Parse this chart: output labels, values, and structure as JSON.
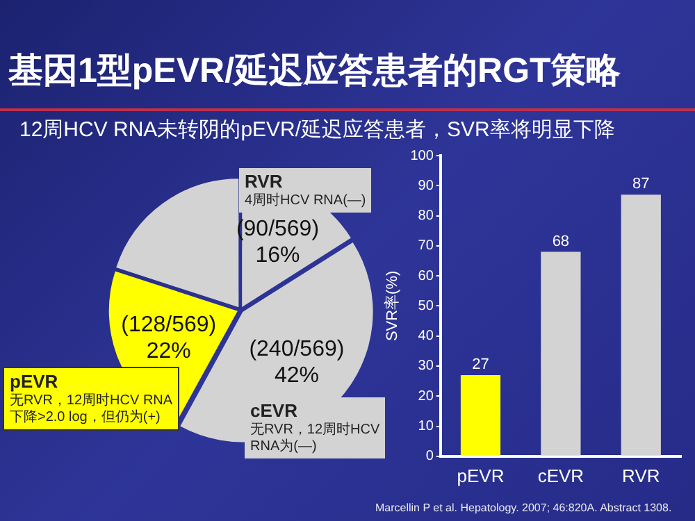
{
  "chart_data": [
    {
      "type": "pie",
      "title": "基因1型pEVR/延迟应答患者的RGT策略",
      "subtitle": "12周HCV RNA未转阴的pEVR/延迟应答患者，SVR率将明显下降",
      "categories": [
        "RVR",
        "cEVR",
        "pEVR",
        null
      ],
      "values": [
        16,
        42,
        22,
        20
      ],
      "colors": [
        "#d3d3d3",
        "#d3d3d3",
        "#ffff00",
        "#d3d3d3"
      ],
      "value_labels": [
        "(90/569)\n16%",
        "(240/569)\n42%",
        "(128/569)\n22%",
        null
      ],
      "annotations": [
        "4周时HCV RNA(—)",
        "无RVR，12周时HCV\nRNA为(—)",
        "无RVR，12周时HCV RNA\n下降>2.0 log，但仍为(+)"
      ],
      "legend": false
    },
    {
      "type": "bar",
      "categories": [
        "pEVR",
        "cEVR",
        "RVR"
      ],
      "values": [
        27,
        68,
        87
      ],
      "colors": [
        "#ffff00",
        "#d3d3d3",
        "#d3d3d3"
      ],
      "ylabel": "SVR率(%)",
      "ylim": [
        0,
        100
      ],
      "yticks": [
        0,
        10,
        20,
        30,
        40,
        50,
        60,
        70,
        80,
        90,
        100
      ],
      "grid": false,
      "data_labels": true,
      "legend": false,
      "annotations": [
        "Marcellin P et al. Hepatology. 2007; 46:820A. Abstract 1308."
      ]
    }
  ]
}
